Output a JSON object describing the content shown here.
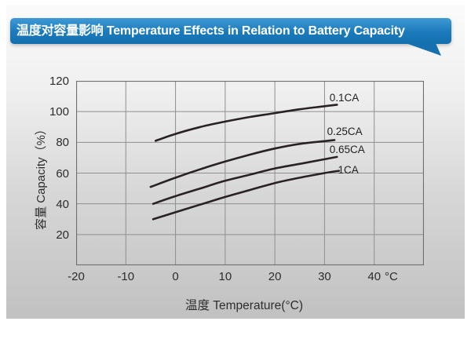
{
  "header": {
    "title": "温度对容量影响 Temperature Effects in Relation to Battery Capacity",
    "banner_color": "#1b7abc"
  },
  "chart_data": {
    "type": "line",
    "title": "温度对容量影响 Temperature Effects in Relation to Battery Capacity",
    "xlabel": "温度  Temperature(°C)",
    "ylabel": "容量 Capacity（%）",
    "x_unit_label": "°C",
    "xlim": [
      -20,
      50
    ],
    "ylim": [
      0,
      120
    ],
    "x_ticks": [
      -20,
      -10,
      0,
      10,
      20,
      30,
      40
    ],
    "y_ticks": [
      20,
      40,
      60,
      80,
      100,
      120
    ],
    "grid": true,
    "legend_position": "inline-right",
    "grid_color": "#8f8f8f",
    "border_color": "#6f6f6f",
    "line_color": "#2a2126",
    "series": [
      {
        "name": "0.1CA",
        "points": [
          [
            -4,
            81
          ],
          [
            0,
            85.5
          ],
          [
            5,
            90
          ],
          [
            10,
            93.5
          ],
          [
            15,
            96.5
          ],
          [
            20,
            99
          ],
          [
            25,
            101.5
          ],
          [
            30,
            103.5
          ],
          [
            32.5,
            104.5
          ]
        ],
        "label_pos": [
          31,
          109
        ]
      },
      {
        "name": "0.25CA",
        "points": [
          [
            -5,
            51
          ],
          [
            0,
            57
          ],
          [
            5,
            62.5
          ],
          [
            10,
            67.5
          ],
          [
            15,
            72
          ],
          [
            20,
            76
          ],
          [
            25,
            79
          ],
          [
            30,
            80.8
          ],
          [
            32,
            81.5
          ]
        ],
        "label_pos": [
          30.5,
          87
        ]
      },
      {
        "name": "0.65CA",
        "points": [
          [
            -4.5,
            40
          ],
          [
            0,
            45
          ],
          [
            5,
            50
          ],
          [
            10,
            55
          ],
          [
            15,
            59
          ],
          [
            20,
            63
          ],
          [
            25,
            66
          ],
          [
            30,
            69
          ],
          [
            32.5,
            70.5
          ]
        ],
        "label_pos": [
          31,
          75
        ]
      },
      {
        "name": "1CA",
        "points": [
          [
            -4.5,
            30
          ],
          [
            0,
            34.5
          ],
          [
            5,
            39.5
          ],
          [
            10,
            44.5
          ],
          [
            15,
            49
          ],
          [
            20,
            53.5
          ],
          [
            25,
            57
          ],
          [
            30,
            60
          ],
          [
            32.9,
            61.5
          ]
        ],
        "label_pos": [
          32.7,
          62
        ]
      }
    ]
  }
}
